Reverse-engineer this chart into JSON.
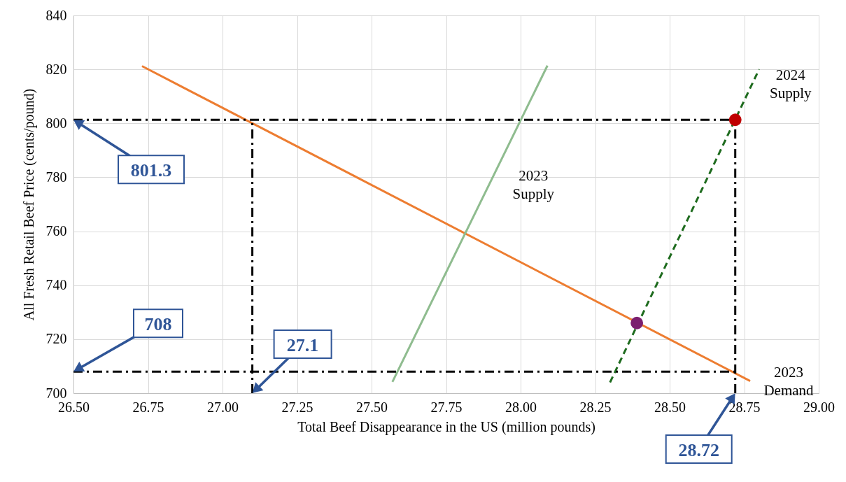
{
  "chart_data": {
    "type": "line",
    "xlabel": "Total Beef Disappearance  in the US (million pounds)",
    "ylabel": "All Fresh Retail Beef Price (cents/pound)",
    "xlim": [
      26.5,
      29
    ],
    "xticks": [
      {
        "value": 26.5,
        "label": "26.50"
      },
      {
        "value": 26.75,
        "label": "26.75"
      },
      {
        "value": 27,
        "label": "27.00"
      },
      {
        "value": 27.25,
        "label": "27.25"
      },
      {
        "value": 27.5,
        "label": "27.50"
      },
      {
        "value": 27.75,
        "label": "27.75"
      },
      {
        "value": 28,
        "label": "28.00"
      },
      {
        "value": 28.25,
        "label": "28.25"
      },
      {
        "value": 28.5,
        "label": "28.50"
      },
      {
        "value": 28.75,
        "label": "28.75"
      },
      {
        "value": 29,
        "label": "29.00"
      }
    ],
    "ylim": [
      700,
      840
    ],
    "yticks": [
      700,
      720,
      740,
      760,
      780,
      800,
      820,
      840
    ],
    "grid": true,
    "series": [
      {
        "name": "2023 Demand",
        "color": "#ed7d31",
        "x": [
          26.73,
          28.77
        ],
        "values": [
          821.2,
          704.5
        ]
      },
      {
        "name": "2023 Supply",
        "color": "#8fbc8f",
        "x": [
          27.57,
          28.09
        ],
        "values": [
          704.2,
          821.4
        ]
      },
      {
        "name": "2024 Supply",
        "color": "#1e6b1e",
        "line_style": "dashed",
        "x": [
          28.3,
          28.8
        ],
        "values": [
          704,
          820
        ]
      },
      {
        "type": "scatter",
        "marker": "circle",
        "color": "#c00000",
        "x": [
          28.72
        ],
        "values": [
          801.3
        ]
      },
      {
        "type": "scatter",
        "marker": "circle",
        "color": "#7b1f6f",
        "x": [
          28.39
        ],
        "values": [
          726
        ]
      }
    ],
    "ref_lines": [
      {
        "axis": "y",
        "value": 801.3,
        "label": "801.3",
        "line_style": "dashed"
      },
      {
        "axis": "y",
        "value": 708,
        "label": "708",
        "line_style": "dashed"
      },
      {
        "axis": "x",
        "value": 27.1,
        "label": "27.1",
        "line_style": "dashed"
      },
      {
        "axis": "x",
        "value": 28.72,
        "label": "28.72",
        "line_style": "dashed"
      }
    ]
  }
}
